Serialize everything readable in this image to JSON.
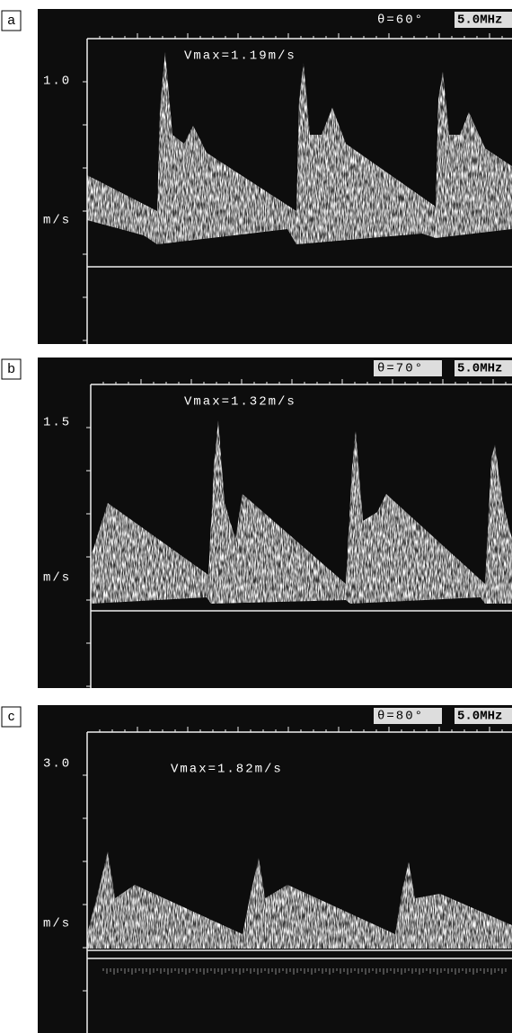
{
  "panels": [
    {
      "label": "a",
      "angle": "θ=60°",
      "frequency": "5.0MHz",
      "scale_label": "1.0",
      "unit": "m/s",
      "vmax": "Vmax=1.19m/s"
    },
    {
      "label": "b",
      "angle": "θ=70°",
      "frequency": "5.0MHz",
      "scale_label": "1.5",
      "unit": "m/s",
      "vmax": "Vmax=1.32m/s"
    },
    {
      "label": "c",
      "angle": "θ=80°",
      "frequency": "5.0MHz",
      "scale_label": "3.0",
      "unit": "m/s",
      "vmax": "Vmax=1.82m/s"
    }
  ]
}
